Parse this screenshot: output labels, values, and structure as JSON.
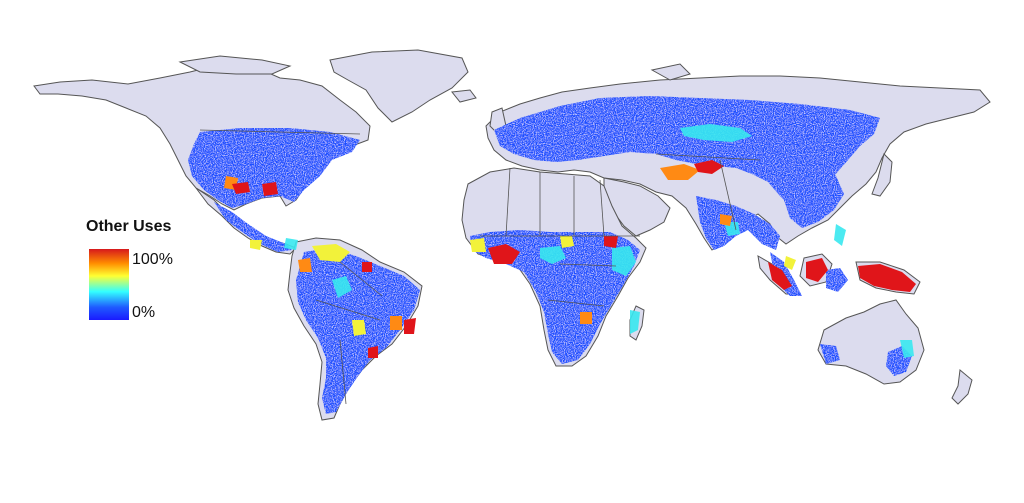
{
  "map": {
    "projection": "equirectangular world map",
    "land_color": "#dcdcee",
    "border_color": "#555555",
    "ocean_color": "#ffffff"
  },
  "legend": {
    "title": "Other Uses",
    "max_label": "100%",
    "min_label": "0%",
    "colorscale": [
      "#d7191c",
      "#ff8c00",
      "#ffff33",
      "#33ffff",
      "#1f5bff",
      "#1a1aff"
    ]
  }
}
